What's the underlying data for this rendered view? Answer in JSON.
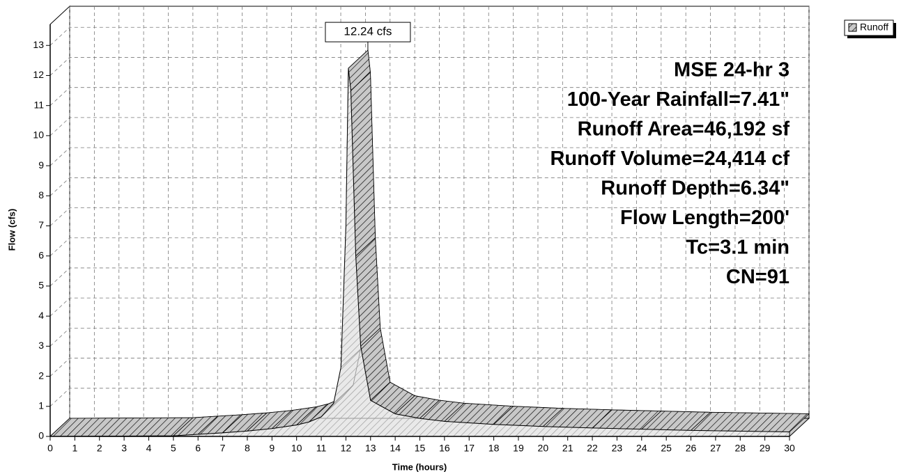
{
  "chart_data": {
    "type": "area",
    "x_label": "Time  (hours)",
    "y_label": "Flow  (cfs)",
    "x": [
      0,
      5,
      6,
      7,
      8,
      9,
      10,
      10.5,
      11,
      11.5,
      11.8,
      12,
      12.1,
      12.2,
      12.4,
      12.6,
      13,
      14,
      15,
      16,
      18,
      20,
      22,
      24,
      26,
      30
    ],
    "series": [
      {
        "name": "Runoff",
        "color": "#c8c8c8",
        "values": [
          0,
          0.02,
          0.07,
          0.12,
          0.18,
          0.26,
          0.38,
          0.48,
          0.65,
          1.1,
          2.3,
          7.0,
          12.24,
          11.5,
          6.0,
          3.0,
          1.2,
          0.75,
          0.6,
          0.5,
          0.4,
          0.33,
          0.28,
          0.24,
          0.2,
          0.15
        ]
      }
    ],
    "xlim": [
      0,
      30
    ],
    "ylim": [
      0,
      13.7
    ],
    "xticks": [
      0,
      1,
      2,
      3,
      4,
      5,
      6,
      7,
      8,
      9,
      10,
      11,
      12,
      13,
      14,
      15,
      16,
      17,
      18,
      19,
      20,
      21,
      22,
      23,
      24,
      25,
      26,
      27,
      28,
      29,
      30
    ],
    "yticks": [
      0,
      1,
      2,
      3,
      4,
      5,
      6,
      7,
      8,
      9,
      10,
      11,
      12,
      13
    ],
    "grid": true,
    "legend": "upper right",
    "peak_label": "12.24 cfs",
    "info_lines": [
      "MSE 24-hr 3",
      "100-Year Rainfall=7.41\"",
      "Runoff Area=46,192 sf",
      "Runoff Volume=24,414 cf",
      "Runoff Depth=6.34\"",
      "Flow Length=200'",
      "Tc=3.1 min",
      "CN=91"
    ]
  }
}
